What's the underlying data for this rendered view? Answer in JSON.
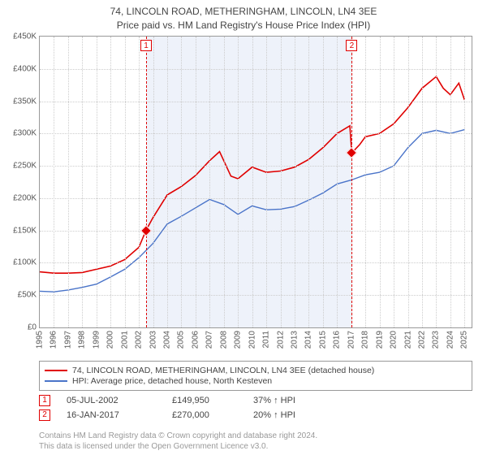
{
  "title": {
    "line1": "74, LINCOLN ROAD, METHERINGHAM, LINCOLN, LN4 3EE",
    "line2": "Price paid vs. HM Land Registry's House Price Index (HPI)"
  },
  "chart": {
    "type": "line",
    "xlim": [
      1995,
      2025.5
    ],
    "ylim": [
      0,
      450000
    ],
    "ytick_step": 50000,
    "y_ticks": [
      "£0",
      "£50K",
      "£100K",
      "£150K",
      "£200K",
      "£250K",
      "£300K",
      "£350K",
      "£400K",
      "£450K"
    ],
    "x_ticks": [
      1995,
      1996,
      1997,
      1998,
      1999,
      2000,
      2001,
      2002,
      2003,
      2004,
      2005,
      2006,
      2007,
      2008,
      2009,
      2010,
      2011,
      2012,
      2013,
      2014,
      2015,
      2016,
      2017,
      2018,
      2019,
      2020,
      2021,
      2022,
      2023,
      2024,
      2025
    ],
    "grid_color": "#cccccc",
    "shaded_band": {
      "from": 2002.51,
      "to": 2017.04,
      "color": "#eef2fa"
    },
    "series": [
      {
        "name": "subject",
        "color": "#e00000",
        "width": 1.6,
        "points": [
          [
            1995,
            86000
          ],
          [
            1996,
            84000
          ],
          [
            1997,
            84000
          ],
          [
            1998,
            85000
          ],
          [
            1999,
            90000
          ],
          [
            2000,
            95000
          ],
          [
            2001,
            105000
          ],
          [
            2002,
            124000
          ],
          [
            2002.5,
            149950
          ],
          [
            2003,
            170000
          ],
          [
            2004,
            205000
          ],
          [
            2005,
            218000
          ],
          [
            2006,
            235000
          ],
          [
            2007,
            258000
          ],
          [
            2007.7,
            272000
          ],
          [
            2008.5,
            234000
          ],
          [
            2009,
            230000
          ],
          [
            2010,
            248000
          ],
          [
            2011,
            240000
          ],
          [
            2012,
            242000
          ],
          [
            2013,
            248000
          ],
          [
            2014,
            260000
          ],
          [
            2015,
            278000
          ],
          [
            2016,
            300000
          ],
          [
            2016.9,
            312000
          ],
          [
            2017.04,
            270000
          ],
          [
            2017.6,
            283000
          ],
          [
            2018,
            295000
          ],
          [
            2019,
            300000
          ],
          [
            2020,
            315000
          ],
          [
            2021,
            340000
          ],
          [
            2022,
            370000
          ],
          [
            2023,
            388000
          ],
          [
            2023.5,
            370000
          ],
          [
            2024,
            360000
          ],
          [
            2024.6,
            378000
          ],
          [
            2025,
            352000
          ]
        ]
      },
      {
        "name": "hpi",
        "color": "#4a74c9",
        "width": 1.4,
        "points": [
          [
            1995,
            56000
          ],
          [
            1996,
            55000
          ],
          [
            1997,
            58000
          ],
          [
            1998,
            62000
          ],
          [
            1999,
            67000
          ],
          [
            2000,
            78000
          ],
          [
            2001,
            90000
          ],
          [
            2002,
            108000
          ],
          [
            2003,
            130000
          ],
          [
            2004,
            160000
          ],
          [
            2005,
            172000
          ],
          [
            2006,
            185000
          ],
          [
            2007,
            198000
          ],
          [
            2008,
            190000
          ],
          [
            2009,
            175000
          ],
          [
            2010,
            188000
          ],
          [
            2011,
            182000
          ],
          [
            2012,
            183000
          ],
          [
            2013,
            187000
          ],
          [
            2014,
            197000
          ],
          [
            2015,
            208000
          ],
          [
            2016,
            222000
          ],
          [
            2017,
            228000
          ],
          [
            2018,
            236000
          ],
          [
            2019,
            240000
          ],
          [
            2020,
            250000
          ],
          [
            2021,
            278000
          ],
          [
            2022,
            300000
          ],
          [
            2023,
            305000
          ],
          [
            2024,
            300000
          ],
          [
            2025,
            306000
          ]
        ]
      }
    ],
    "vlines": [
      {
        "x": 2002.51,
        "color": "#e00000",
        "label": "1"
      },
      {
        "x": 2017.04,
        "color": "#e00000",
        "label": "2"
      }
    ],
    "sale_points": [
      {
        "x": 2002.51,
        "y": 149950,
        "color": "#e00000"
      },
      {
        "x": 2017.04,
        "y": 270000,
        "color": "#e00000"
      }
    ]
  },
  "legend": {
    "items": [
      {
        "color": "#e00000",
        "label": "74, LINCOLN ROAD, METHERINGHAM, LINCOLN, LN4 3EE (detached house)"
      },
      {
        "color": "#4a74c9",
        "label": "HPI: Average price, detached house, North Kesteven"
      }
    ]
  },
  "transactions": [
    {
      "num": "1",
      "date": "05-JUL-2002",
      "price": "£149,950",
      "diff": "37% ↑ HPI"
    },
    {
      "num": "2",
      "date": "16-JAN-2017",
      "price": "£270,000",
      "diff": "20% ↑ HPI"
    }
  ],
  "footnote": {
    "line1": "Contains HM Land Registry data © Crown copyright and database right 2024.",
    "line2": "This data is licensed under the Open Government Licence v3.0."
  }
}
